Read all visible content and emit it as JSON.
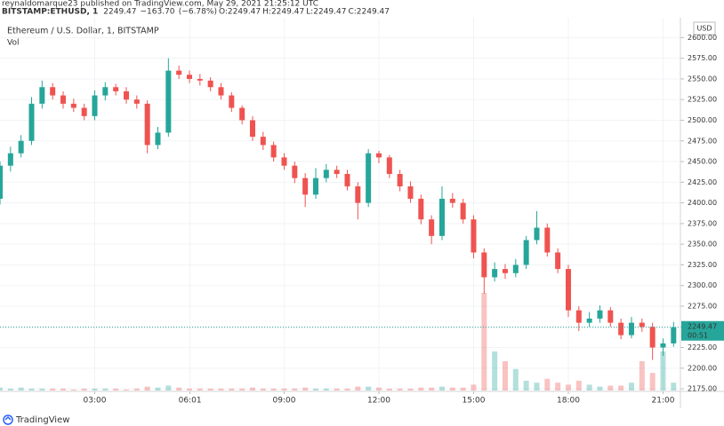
{
  "chart_data": {
    "type": "candlestick",
    "publisher_line": "reynaldomarque23 published on TradingView.com, May 29, 2021 21:25:12 UTC",
    "symbol": "BITSTAMP:ETHUSD, 1",
    "last_price": 2249.47,
    "change": {
      "value": -163.7,
      "label": "−163.70"
    },
    "change_pct": {
      "value": -6.78,
      "label": "(−6.78%)"
    },
    "ohlc_header": [
      {
        "label": "O:",
        "value": 2249.47
      },
      {
        "label": "H:",
        "value": 2249.47
      },
      {
        "label": "L:",
        "value": 2249.47
      },
      {
        "label": "C:",
        "value": 2249.47
      }
    ],
    "title": "Ethereum / U.S. Dollar, 1, BITSTAMP",
    "volume_label": "Vol",
    "currency": "USD",
    "countdown": "00:51",
    "brand": "TradingView",
    "up_color": "#26a69a",
    "down_color": "#ef5350",
    "x": [
      0,
      20,
      40,
      60,
      80,
      100,
      120,
      140,
      160,
      180,
      200,
      220,
      240,
      260,
      280,
      300,
      320,
      340,
      360,
      380,
      400,
      420,
      440,
      460,
      480,
      500,
      520,
      540,
      560,
      580,
      600,
      620,
      640,
      660,
      680,
      700,
      720,
      740,
      760,
      780,
      800,
      820,
      840,
      860,
      880,
      900,
      920,
      940,
      960,
      980,
      1000,
      1020,
      1040,
      1060,
      1080,
      1100,
      1120,
      1140,
      1160,
      1180,
      1200,
      1220,
      1240,
      1260,
      1280
    ],
    "open": [
      2405,
      2445,
      2460,
      2475,
      2520,
      2540,
      2530,
      2520,
      2515,
      2505,
      2530,
      2540,
      2535,
      2525,
      2520,
      2470,
      2485,
      2560,
      2555,
      2550,
      2548,
      2540,
      2530,
      2515,
      2500,
      2480,
      2470,
      2455,
      2445,
      2430,
      2410,
      2430,
      2440,
      2435,
      2420,
      2400,
      2460,
      2455,
      2435,
      2420,
      2405,
      2380,
      2360,
      2405,
      2400,
      2380,
      2340,
      2310,
      2320,
      2315,
      2325,
      2355,
      2370,
      2340,
      2320,
      2270,
      2255,
      2260,
      2270,
      2255,
      2240,
      2255,
      2250,
      2225,
      2230
    ],
    "high": [
      2450,
      2468,
      2482,
      2528,
      2548,
      2545,
      2535,
      2526,
      2520,
      2536,
      2546,
      2544,
      2540,
      2530,
      2524,
      2492,
      2575,
      2566,
      2560,
      2556,
      2552,
      2545,
      2534,
      2518,
      2505,
      2486,
      2474,
      2460,
      2450,
      2436,
      2442,
      2447,
      2445,
      2440,
      2425,
      2465,
      2463,
      2458,
      2440,
      2426,
      2410,
      2385,
      2420,
      2412,
      2405,
      2385,
      2345,
      2328,
      2326,
      2332,
      2360,
      2390,
      2375,
      2345,
      2325,
      2275,
      2268,
      2276,
      2274,
      2260,
      2262,
      2260,
      2255,
      2236,
      2256
    ],
    "low": [
      2398,
      2438,
      2455,
      2470,
      2514,
      2525,
      2514,
      2510,
      2500,
      2500,
      2524,
      2530,
      2520,
      2514,
      2460,
      2465,
      2480,
      2550,
      2545,
      2542,
      2535,
      2525,
      2510,
      2495,
      2475,
      2464,
      2450,
      2440,
      2424,
      2395,
      2405,
      2425,
      2430,
      2415,
      2380,
      2395,
      2448,
      2430,
      2414,
      2400,
      2374,
      2350,
      2355,
      2394,
      2375,
      2333,
      2290,
      2305,
      2308,
      2310,
      2320,
      2350,
      2335,
      2315,
      2262,
      2245,
      2250,
      2255,
      2250,
      2235,
      2236,
      2244,
      2210,
      2215,
      2226
    ],
    "close": [
      2445,
      2460,
      2475,
      2520,
      2540,
      2530,
      2520,
      2515,
      2505,
      2530,
      2540,
      2535,
      2525,
      2520,
      2470,
      2485,
      2560,
      2555,
      2550,
      2548,
      2540,
      2530,
      2515,
      2500,
      2480,
      2470,
      2455,
      2445,
      2430,
      2410,
      2430,
      2440,
      2435,
      2420,
      2400,
      2460,
      2455,
      2435,
      2420,
      2405,
      2380,
      2360,
      2405,
      2400,
      2380,
      2340,
      2310,
      2320,
      2315,
      2325,
      2355,
      2370,
      2340,
      2320,
      2270,
      2255,
      2260,
      2270,
      2255,
      2240,
      2255,
      2250,
      2225,
      2230,
      2249.47
    ],
    "volume": [
      3,
      2,
      3,
      2,
      2,
      2,
      2,
      1,
      2,
      2,
      2,
      2,
      1,
      2,
      4,
      3,
      5,
      3,
      2,
      2,
      2,
      2,
      2,
      2,
      3,
      2,
      2,
      2,
      2,
      3,
      2,
      2,
      2,
      2,
      4,
      4,
      3,
      2,
      2,
      2,
      3,
      3,
      4,
      3,
      3,
      6,
      100,
      40,
      30,
      22,
      10,
      8,
      12,
      8,
      6,
      10,
      6,
      4,
      5,
      5,
      8,
      30,
      18,
      40,
      8
    ],
    "vlim": [
      0,
      100
    ],
    "xlim": [
      0,
      1293
    ],
    "ylim": [
      2173,
      2624
    ],
    "xticks": [
      {
        "value": 180,
        "label": "03:00"
      },
      {
        "value": 361,
        "label": "06:01"
      },
      {
        "value": 540,
        "label": "09:00"
      },
      {
        "value": 720,
        "label": "12:00"
      },
      {
        "value": 900,
        "label": "15:00"
      },
      {
        "value": 1080,
        "label": "18:00"
      },
      {
        "value": 1260,
        "label": "21:00"
      }
    ],
    "yticks": [
      {
        "value": 2175,
        "label": "2175.00"
      },
      {
        "value": 2200,
        "label": "2200.00"
      },
      {
        "value": 2225,
        "label": "2225.00"
      },
      {
        "value": 2250,
        "label": "2250.00"
      },
      {
        "value": 2275,
        "label": "2275.00"
      },
      {
        "value": 2300,
        "label": "2300.00"
      },
      {
        "value": 2325,
        "label": "2325.00"
      },
      {
        "value": 2350,
        "label": "2350.00"
      },
      {
        "value": 2375,
        "label": "2375.00"
      },
      {
        "value": 2400,
        "label": "2400.00"
      },
      {
        "value": 2425,
        "label": "2425.00"
      },
      {
        "value": 2450,
        "label": "2450.00"
      },
      {
        "value": 2475,
        "label": "2475.00"
      },
      {
        "value": 2500,
        "label": "2500.00"
      },
      {
        "value": 2525,
        "label": "2525.00"
      },
      {
        "value": 2550,
        "label": "2550.00"
      },
      {
        "value": 2575,
        "label": "2575.00"
      },
      {
        "value": 2600,
        "label": "2600.00"
      }
    ],
    "grid": true
  }
}
